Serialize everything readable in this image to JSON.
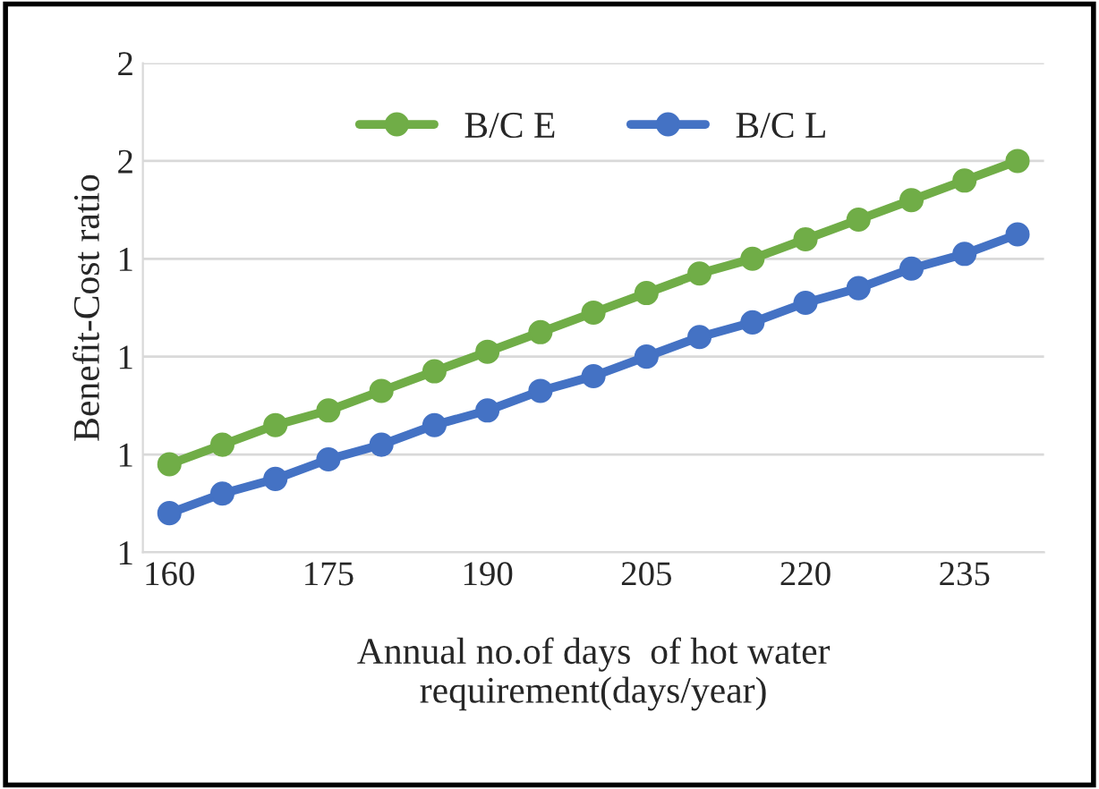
{
  "chart_data": {
    "type": "line",
    "xlabel": "Annual no.of days  of hot water\nrequirement(days/year)",
    "ylabel": "Benefit-Cost ratio",
    "x": [
      160,
      165,
      170,
      175,
      180,
      185,
      190,
      195,
      200,
      205,
      210,
      215,
      220,
      225,
      230,
      235,
      240
    ],
    "series": [
      {
        "name": "B/C E",
        "color": "#70ad47",
        "values": [
          0.98,
          1.02,
          1.06,
          1.09,
          1.13,
          1.17,
          1.21,
          1.25,
          1.29,
          1.33,
          1.37,
          1.4,
          1.44,
          1.48,
          1.52,
          1.56,
          1.6
        ]
      },
      {
        "name": "B/C L",
        "color": "#4472c4",
        "values": [
          0.88,
          0.92,
          0.95,
          0.99,
          1.02,
          1.06,
          1.09,
          1.13,
          1.16,
          1.2,
          1.24,
          1.27,
          1.31,
          1.34,
          1.38,
          1.41,
          1.45
        ]
      }
    ],
    "xlim": [
      157.5,
      242.5
    ],
    "xticks": [
      160,
      175,
      190,
      205,
      220,
      235
    ],
    "ylim": [
      0.8,
      1.8
    ],
    "yticks": [
      {
        "value": 0.8,
        "label": "1"
      },
      {
        "value": 1.0,
        "label": "1"
      },
      {
        "value": 1.2,
        "label": "1"
      },
      {
        "value": 1.4,
        "label": "1"
      },
      {
        "value": 1.6,
        "label": "2"
      },
      {
        "value": 1.8,
        "label": "2"
      }
    ],
    "grid": "y",
    "legend": "top",
    "marker": "circle",
    "line_style": "solid"
  }
}
